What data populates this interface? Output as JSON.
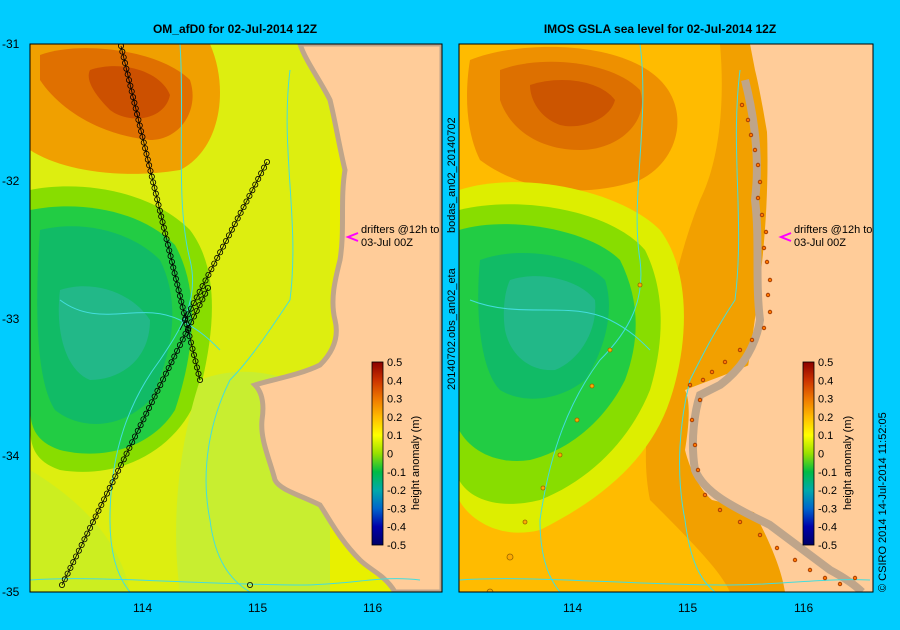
{
  "left_panel": {
    "title": "OM_afD0 for 02-Jul-2014 12Z",
    "annotation_line1": "drifters @12h to",
    "annotation_line2": "03-Jul 00Z"
  },
  "right_panel": {
    "title": "IMOS GSLA sea level  for 02-Jul-2014 12Z",
    "side_label": "20140702.obs_an02_eta",
    "side_label2": "bodas_an02_20140702",
    "annotation_line1": "drifters @12h to",
    "annotation_line2": "03-Jul 00Z"
  },
  "axes": {
    "x_ticks": [
      "114",
      "115",
      "116"
    ],
    "y_ticks": [
      "-31",
      "-32",
      "-33",
      "-34",
      "-35"
    ]
  },
  "colorbar": {
    "label": "height anomaly (m)",
    "ticks": [
      "0.5",
      "0.4",
      "0.3",
      "0.2",
      "0.1",
      "0",
      "-0.1",
      "-0.2",
      "-0.3",
      "-0.4",
      "-0.5"
    ]
  },
  "credit": "© CSIRO 2014   14-Jul-2014 11:52:05",
  "colors": {
    "background": "#00ccff",
    "land": "#ffcc99",
    "coast": "#bfa58a",
    "arrow": "#ff00ff",
    "drifter_track": "#000000"
  }
}
